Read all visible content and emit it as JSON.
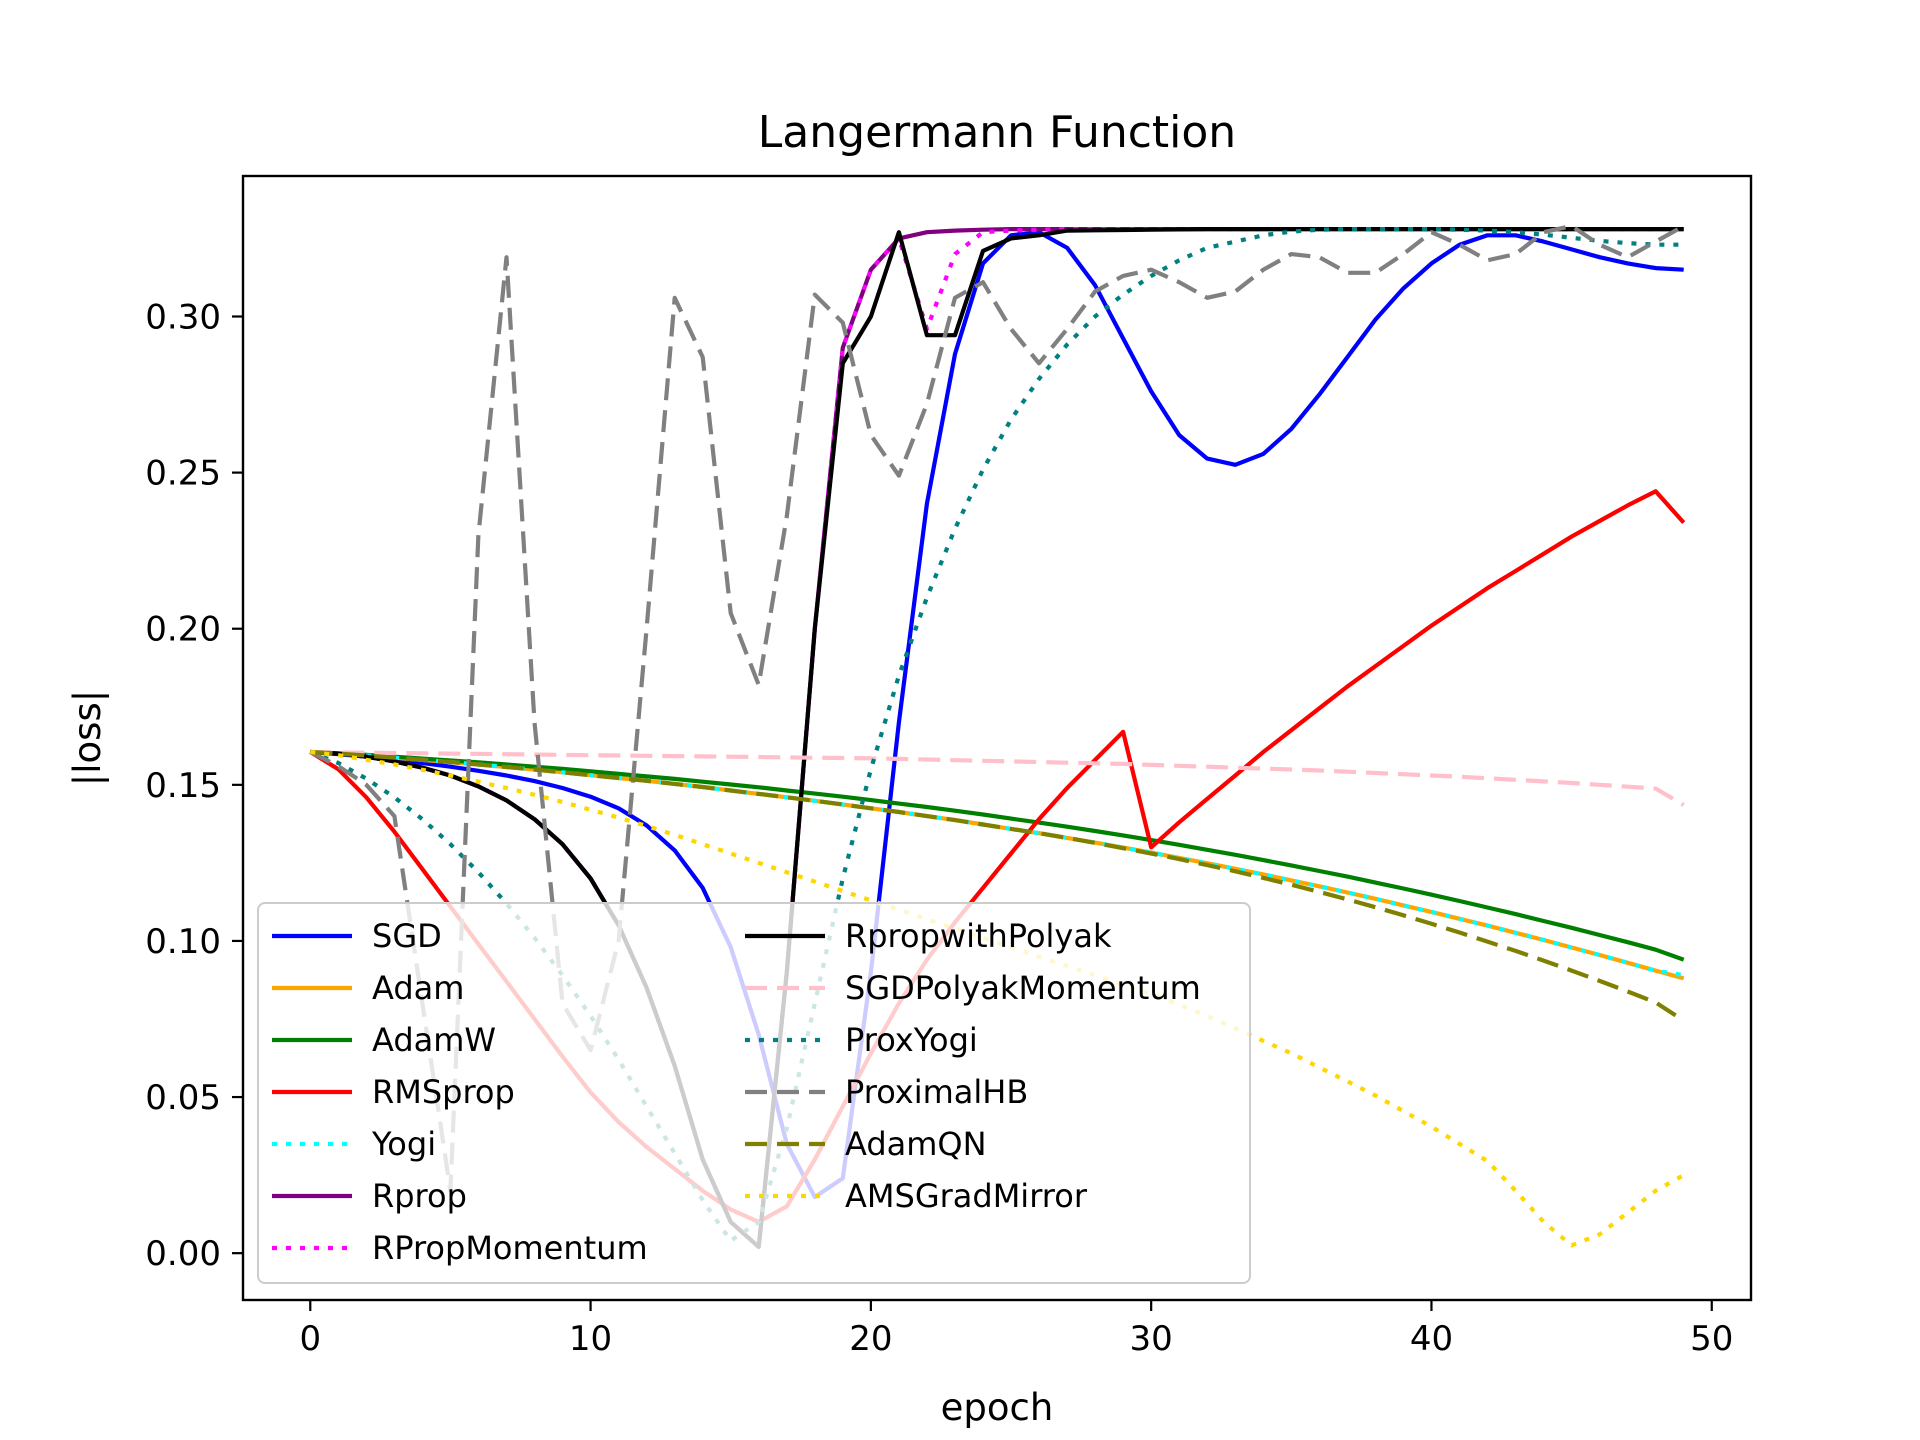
{
  "chart_data": {
    "type": "line",
    "title": "Langermann Function",
    "xlabel": "epoch",
    "ylabel": "|loss|",
    "xlim": [
      -2.4,
      51.4
    ],
    "ylim": [
      -0.015,
      0.345
    ],
    "xticks": [
      0,
      10,
      20,
      30,
      40,
      50
    ],
    "yticks": [
      0.0,
      0.05,
      0.1,
      0.15,
      0.2,
      0.25,
      0.3
    ],
    "ytick_labels": [
      "0.00",
      "0.05",
      "0.10",
      "0.15",
      "0.20",
      "0.25",
      "0.30"
    ],
    "grid": false,
    "legend": {
      "placement": "lower-left",
      "columns": 2
    },
    "x": [
      0,
      1,
      2,
      3,
      4,
      5,
      6,
      7,
      8,
      9,
      10,
      11,
      12,
      13,
      14,
      15,
      16,
      17,
      18,
      19,
      20,
      21,
      22,
      23,
      24,
      25,
      26,
      27,
      28,
      29,
      30,
      31,
      32,
      33,
      34,
      35,
      36,
      37,
      38,
      39,
      40,
      41,
      42,
      43,
      44,
      45,
      46,
      47,
      48,
      49
    ],
    "series": [
      {
        "name": "SGD",
        "color": "#0000ff",
        "dash": "solid",
        "values": [
          0.1605,
          0.1598,
          0.159,
          0.158,
          0.157,
          0.1558,
          0.1545,
          0.153,
          0.1512,
          0.149,
          0.1462,
          0.1425,
          0.137,
          0.129,
          0.117,
          0.098,
          0.07,
          0.035,
          0.018,
          0.024,
          0.09,
          0.17,
          0.24,
          0.288,
          0.317,
          0.326,
          0.327,
          0.322,
          0.31,
          0.293,
          0.276,
          0.262,
          0.2545,
          0.2525,
          0.256,
          0.264,
          0.275,
          0.287,
          0.299,
          0.309,
          0.317,
          0.323,
          0.326,
          0.326,
          0.324,
          0.3215,
          0.319,
          0.317,
          0.3155,
          0.315
        ]
      },
      {
        "name": "Adam",
        "color": "#ffa500",
        "dash": "solid",
        "values": [
          0.1605,
          0.16,
          0.1594,
          0.1587,
          0.158,
          0.1573,
          0.1565,
          0.1557,
          0.1549,
          0.154,
          0.1531,
          0.1522,
          0.1513,
          0.1503,
          0.1493,
          0.1482,
          0.1471,
          0.146,
          0.1449,
          0.1437,
          0.1425,
          0.1413,
          0.14,
          0.1387,
          0.1373,
          0.1359,
          0.1345,
          0.133,
          0.1315,
          0.1299,
          0.1283,
          0.1266,
          0.1249,
          0.1231,
          0.1213,
          0.1194,
          0.1175,
          0.1155,
          0.1135,
          0.1114,
          0.1093,
          0.1071,
          0.1049,
          0.1026,
          0.1003,
          0.0979,
          0.0955,
          0.093,
          0.0905,
          0.088
        ]
      },
      {
        "name": "AdamW",
        "color": "#008000",
        "dash": "solid",
        "values": [
          0.1605,
          0.1601,
          0.1596,
          0.159,
          0.1584,
          0.1578,
          0.1572,
          0.1565,
          0.1558,
          0.1551,
          0.1543,
          0.1535,
          0.1527,
          0.1519,
          0.151,
          0.1501,
          0.1492,
          0.1482,
          0.1472,
          0.1462,
          0.1451,
          0.144,
          0.1429,
          0.1417,
          0.1405,
          0.1392,
          0.1379,
          0.1366,
          0.1352,
          0.1338,
          0.1323,
          0.1308,
          0.1292,
          0.1276,
          0.1259,
          0.1242,
          0.1224,
          0.1206,
          0.1187,
          0.1168,
          0.1148,
          0.1128,
          0.1107,
          0.1086,
          0.1064,
          0.1042,
          0.1019,
          0.0996,
          0.0972,
          0.094
        ]
      },
      {
        "name": "RMSprop",
        "color": "#ff0000",
        "dash": "solid",
        "values": [
          0.1605,
          0.155,
          0.146,
          0.135,
          0.123,
          0.111,
          0.099,
          0.087,
          0.075,
          0.063,
          0.0515,
          0.042,
          0.034,
          0.027,
          0.02,
          0.014,
          0.01,
          0.015,
          0.03,
          0.047,
          0.064,
          0.08,
          0.094,
          0.106,
          0.117,
          0.128,
          0.139,
          0.149,
          0.158,
          0.167,
          0.13,
          0.138,
          0.1455,
          0.153,
          0.1605,
          0.1675,
          0.1745,
          0.1815,
          0.188,
          0.1945,
          0.201,
          0.207,
          0.213,
          0.2185,
          0.224,
          0.2295,
          0.2345,
          0.2395,
          0.244,
          0.234
        ]
      },
      {
        "name": "Yogi",
        "color": "#00ffff",
        "dash": "dotted",
        "values": [
          0.1605,
          0.16,
          0.1594,
          0.1587,
          0.158,
          0.1573,
          0.1565,
          0.1557,
          0.1549,
          0.154,
          0.1531,
          0.1522,
          0.1513,
          0.1503,
          0.1493,
          0.1482,
          0.1471,
          0.146,
          0.1449,
          0.1437,
          0.1425,
          0.1413,
          0.14,
          0.1387,
          0.1373,
          0.1359,
          0.1345,
          0.133,
          0.1315,
          0.1299,
          0.1283,
          0.1266,
          0.1249,
          0.1231,
          0.1213,
          0.1194,
          0.1175,
          0.1155,
          0.1135,
          0.1114,
          0.1093,
          0.1071,
          0.1049,
          0.1026,
          0.1003,
          0.0979,
          0.0955,
          0.093,
          0.0905,
          0.089
        ]
      },
      {
        "name": "Rprop",
        "color": "#800080",
        "dash": "solid",
        "values": [
          0.1605,
          0.16,
          0.159,
          0.1575,
          0.1555,
          0.153,
          0.1495,
          0.145,
          0.139,
          0.131,
          0.12,
          0.105,
          0.085,
          0.06,
          0.03,
          0.01,
          0.002,
          0.09,
          0.2,
          0.29,
          0.315,
          0.325,
          0.327,
          0.3275,
          0.3278,
          0.328,
          0.328,
          0.328,
          0.328,
          0.328,
          0.328,
          0.328,
          0.328,
          0.328,
          0.328,
          0.328,
          0.328,
          0.328,
          0.328,
          0.328,
          0.328,
          0.328,
          0.328,
          0.328,
          0.328,
          0.328,
          0.328,
          0.328,
          0.328,
          0.328
        ]
      },
      {
        "name": "RPropMomentum",
        "color": "#ff00ff",
        "dash": "dotted",
        "values": [
          0.1605,
          0.16,
          0.159,
          0.1575,
          0.1555,
          0.153,
          0.1495,
          0.145,
          0.139,
          0.131,
          0.12,
          0.105,
          0.085,
          0.06,
          0.03,
          0.01,
          0.002,
          0.09,
          0.2,
          0.29,
          0.315,
          0.325,
          0.296,
          0.32,
          0.327,
          0.3275,
          0.3278,
          0.328,
          0.328,
          0.328,
          0.328,
          0.328,
          0.328,
          0.328,
          0.328,
          0.328,
          0.328,
          0.328,
          0.328,
          0.328,
          0.328,
          0.328,
          0.328,
          0.328,
          0.328,
          0.328,
          0.328,
          0.328,
          0.328,
          0.328
        ]
      },
      {
        "name": "RpropwithPolyak",
        "color": "#000000",
        "dash": "solid",
        "values": [
          0.1605,
          0.16,
          0.159,
          0.1575,
          0.1555,
          0.153,
          0.1495,
          0.145,
          0.139,
          0.131,
          0.12,
          0.105,
          0.085,
          0.06,
          0.03,
          0.01,
          0.002,
          0.09,
          0.2,
          0.285,
          0.3,
          0.327,
          0.294,
          0.294,
          0.321,
          0.325,
          0.326,
          0.3275,
          0.3276,
          0.3277,
          0.3278,
          0.3279,
          0.328,
          0.328,
          0.328,
          0.328,
          0.328,
          0.328,
          0.328,
          0.328,
          0.328,
          0.328,
          0.328,
          0.328,
          0.328,
          0.328,
          0.328,
          0.328,
          0.328,
          0.328
        ]
      },
      {
        "name": "SGDPolyakMomentum",
        "color": "#ffc0cb",
        "dash": "dashed",
        "values": [
          0.1605,
          0.1604,
          0.1603,
          0.1602,
          0.1601,
          0.16,
          0.1599,
          0.1598,
          0.1597,
          0.1596,
          0.1595,
          0.1594,
          0.1593,
          0.1592,
          0.1591,
          0.159,
          0.1589,
          0.1588,
          0.1587,
          0.1586,
          0.1585,
          0.1583,
          0.1581,
          0.1579,
          0.1577,
          0.1575,
          0.1573,
          0.1571,
          0.1569,
          0.1567,
          0.1564,
          0.1561,
          0.1558,
          0.1555,
          0.1552,
          0.1549,
          0.1546,
          0.1542,
          0.1538,
          0.1534,
          0.153,
          0.1526,
          0.1521,
          0.1516,
          0.1511,
          0.1506,
          0.15,
          0.1494,
          0.1488,
          0.1435
        ]
      },
      {
        "name": "ProxYogi",
        "color": "#008080",
        "dash": "dotted",
        "values": [
          0.1605,
          0.157,
          0.152,
          0.146,
          0.139,
          0.131,
          0.122,
          0.112,
          0.101,
          0.089,
          0.076,
          0.062,
          0.047,
          0.032,
          0.017,
          0.004,
          0.01,
          0.04,
          0.08,
          0.12,
          0.155,
          0.185,
          0.21,
          0.232,
          0.251,
          0.267,
          0.28,
          0.291,
          0.3,
          0.307,
          0.313,
          0.318,
          0.322,
          0.324,
          0.326,
          0.3272,
          0.3278,
          0.328,
          0.328,
          0.328,
          0.328,
          0.3278,
          0.3275,
          0.327,
          0.3262,
          0.3252,
          0.3242,
          0.3235,
          0.323,
          0.323
        ]
      },
      {
        "name": "ProximalHB",
        "color": "#808080",
        "dash": "dashed",
        "values": [
          0.1605,
          0.156,
          0.15,
          0.14,
          0.08,
          0.02,
          0.23,
          0.319,
          0.17,
          0.08,
          0.065,
          0.1,
          0.2,
          0.306,
          0.287,
          0.205,
          0.182,
          0.236,
          0.307,
          0.298,
          0.262,
          0.249,
          0.272,
          0.306,
          0.311,
          0.296,
          0.285,
          0.296,
          0.308,
          0.313,
          0.315,
          0.311,
          0.306,
          0.308,
          0.315,
          0.32,
          0.319,
          0.314,
          0.314,
          0.32,
          0.327,
          0.323,
          0.318,
          0.32,
          0.327,
          0.329,
          0.323,
          0.319,
          0.324,
          0.329
        ]
      },
      {
        "name": "AdamQN",
        "color": "#808000",
        "dash": "dashed",
        "values": [
          0.1605,
          0.16,
          0.1594,
          0.1587,
          0.158,
          0.1573,
          0.1565,
          0.1557,
          0.1549,
          0.154,
          0.1531,
          0.1522,
          0.1513,
          0.1503,
          0.1493,
          0.1482,
          0.1471,
          0.146,
          0.1449,
          0.1437,
          0.1425,
          0.1413,
          0.14,
          0.1387,
          0.1373,
          0.1359,
          0.1345,
          0.133,
          0.1314,
          0.1297,
          0.128,
          0.1262,
          0.1243,
          0.1223,
          0.1202,
          0.118,
          0.1157,
          0.1133,
          0.1108,
          0.1082,
          0.1055,
          0.1027,
          0.0998,
          0.0968,
          0.0937,
          0.0905,
          0.0872,
          0.0838,
          0.0803,
          0.0745
        ]
      },
      {
        "name": "AMSGradMirror",
        "color": "#ffd700",
        "dash": "dotted",
        "values": [
          0.1605,
          0.1595,
          0.158,
          0.1565,
          0.1548,
          0.153,
          0.151,
          0.149,
          0.1468,
          0.1445,
          0.142,
          0.1395,
          0.1368,
          0.134,
          0.131,
          0.128,
          0.125,
          0.122,
          0.119,
          0.116,
          0.113,
          0.11,
          0.107,
          0.104,
          0.101,
          0.098,
          0.095,
          0.092,
          0.089,
          0.086,
          0.083,
          0.0795,
          0.076,
          0.072,
          0.068,
          0.064,
          0.0595,
          0.055,
          0.0505,
          0.0455,
          0.0405,
          0.035,
          0.0295,
          0.02,
          0.01,
          0.0025,
          0.006,
          0.013,
          0.02,
          0.025
        ]
      }
    ]
  }
}
